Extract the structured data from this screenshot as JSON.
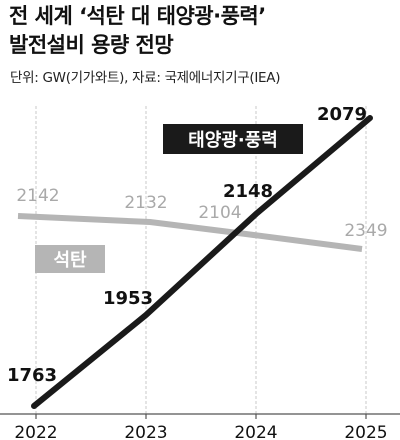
{
  "header": {
    "title_line1": "전 세계 ‘석탄 대 태양광·풍력’",
    "title_line2": "발전설비 용량 전망",
    "unit_source": "단위: GW(기가와트), 자료: 국제에너지기구(IEA)"
  },
  "chart_data": {
    "type": "line",
    "categories": [
      "2022",
      "2023",
      "2024",
      "2025"
    ],
    "series": [
      {
        "name": "석탄",
        "values": [
          2142,
          2132,
          2104,
          2349
        ],
        "color": "#b5b5b5",
        "label_style": "white-text-on-gray"
      },
      {
        "name": "태양광·풍력",
        "values": [
          1763,
          1953,
          2148,
          2079
        ],
        "color": "#1a1a1a",
        "label_style": "white-text-on-black"
      }
    ],
    "grid": "vertical-at-categories",
    "legend": "inline labels"
  }
}
